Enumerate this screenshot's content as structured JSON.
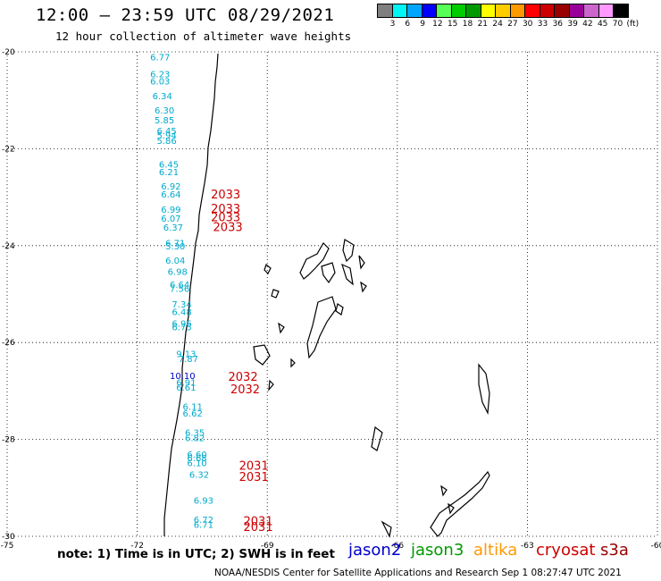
{
  "title": "12:00 – 23:59 UTC 08/29/2021",
  "subtitle": "12 hour collection of altimeter wave heights",
  "colorbar": {
    "colors": [
      "#7f7f7f",
      "#00f5f5",
      "#00a5ff",
      "#0000ff",
      "#55ff55",
      "#00cc00",
      "#009900",
      "#ffff00",
      "#ffcc00",
      "#ff9900",
      "#ff0000",
      "#cc0000",
      "#990000",
      "#990099",
      "#cc66cc",
      "#ff99ff",
      "#000000"
    ],
    "labels": [
      "3",
      "6",
      "9",
      "12",
      "15",
      "18",
      "21",
      "24",
      "27",
      "30",
      "33",
      "36",
      "39",
      "42",
      "45",
      "70",
      "(ft)"
    ]
  },
  "map": {
    "lon_range": [
      -75,
      -60
    ],
    "lat_range": [
      -30,
      -20
    ],
    "x_ticks": [
      "-75",
      "-72",
      "-69",
      "-66",
      "-63",
      "-60"
    ],
    "y_ticks": [
      "-20",
      "-22",
      "-24",
      "-26",
      "-28",
      "-30"
    ],
    "grid": true
  },
  "footnote": "note: 1) Time is in UTC; 2) SWH is in feet",
  "legend": [
    {
      "name": "jason2",
      "color": "#0000cc"
    },
    {
      "name": "jason3",
      "color": "#009900"
    },
    {
      "name": "altika",
      "color": "#ff9900"
    },
    {
      "name": "cryosat",
      "color": "#cc0000"
    },
    {
      "name": "s3a",
      "color": "#990000"
    }
  ],
  "credit": "NOAA/NESDIS Center for Satellite Applications and Research   Sep  1 08:27:47 UTC 2021",
  "swh_labels": [
    {
      "text": "6.77",
      "lon": -71.7,
      "lat": -20.1,
      "color": "#00aacc"
    },
    {
      "text": "6.23",
      "lon": -71.7,
      "lat": -20.45,
      "color": "#00aacc"
    },
    {
      "text": "6.03",
      "lon": -71.7,
      "lat": -20.6,
      "color": "#00aacc"
    },
    {
      "text": "6.34",
      "lon": -71.65,
      "lat": -20.9,
      "color": "#00aacc"
    },
    {
      "text": "6.30",
      "lon": -71.6,
      "lat": -21.2,
      "color": "#00aacc"
    },
    {
      "text": "5.85",
      "lon": -71.6,
      "lat": -21.4,
      "color": "#00aacc"
    },
    {
      "text": "6.45",
      "lon": -71.55,
      "lat": -21.62,
      "color": "#00aacc"
    },
    {
      "text": "5.94",
      "lon": -71.55,
      "lat": -21.72,
      "color": "#00aacc"
    },
    {
      "text": "5.86",
      "lon": -71.55,
      "lat": -21.83,
      "color": "#00aacc"
    },
    {
      "text": "6.45",
      "lon": -71.5,
      "lat": -22.32,
      "color": "#00aacc"
    },
    {
      "text": "6.21",
      "lon": -71.5,
      "lat": -22.47,
      "color": "#00aacc"
    },
    {
      "text": "6.92",
      "lon": -71.45,
      "lat": -22.77,
      "color": "#00aacc"
    },
    {
      "text": "6.64",
      "lon": -71.45,
      "lat": -22.93,
      "color": "#00aacc"
    },
    {
      "text": "6.99",
      "lon": -71.45,
      "lat": -23.25,
      "color": "#00aacc"
    },
    {
      "text": "6.07",
      "lon": -71.45,
      "lat": -23.43,
      "color": "#00aacc"
    },
    {
      "text": "6.37",
      "lon": -71.4,
      "lat": -23.62,
      "color": "#00aacc"
    },
    {
      "text": "6.71",
      "lon": -71.35,
      "lat": -23.94,
      "color": "#00aacc"
    },
    {
      "text": "5.30",
      "lon": -71.35,
      "lat": -24.0,
      "color": "#00aacc"
    },
    {
      "text": "6.04",
      "lon": -71.35,
      "lat": -24.3,
      "color": "#00aacc"
    },
    {
      "text": "6.98",
      "lon": -71.3,
      "lat": -24.53,
      "color": "#00aacc"
    },
    {
      "text": "6.64",
      "lon": -71.25,
      "lat": -24.8,
      "color": "#00aacc"
    },
    {
      "text": "7.56",
      "lon": -71.25,
      "lat": -24.88,
      "color": "#00aacc"
    },
    {
      "text": "7.34",
      "lon": -71.2,
      "lat": -25.2,
      "color": "#00aacc"
    },
    {
      "text": "6.48",
      "lon": -71.2,
      "lat": -25.36,
      "color": "#00aacc"
    },
    {
      "text": "6.96",
      "lon": -71.2,
      "lat": -25.6,
      "color": "#00aacc"
    },
    {
      "text": "6.75",
      "lon": -71.2,
      "lat": -25.67,
      "color": "#00aacc"
    },
    {
      "text": "9.13",
      "lon": -71.1,
      "lat": -26.23,
      "color": "#00aacc"
    },
    {
      "text": "7.87",
      "lon": -71.05,
      "lat": -26.33,
      "color": "#00aacc"
    },
    {
      "text": "10.10",
      "lon": -71.25,
      "lat": -26.68,
      "color": "#0000cc"
    },
    {
      "text": "6.91",
      "lon": -71.1,
      "lat": -26.82,
      "color": "#00aacc"
    },
    {
      "text": "6.61",
      "lon": -71.1,
      "lat": -26.92,
      "color": "#00aacc"
    },
    {
      "text": "6.11",
      "lon": -70.95,
      "lat": -27.32,
      "color": "#00aacc"
    },
    {
      "text": "6.62",
      "lon": -70.95,
      "lat": -27.45,
      "color": "#00aacc"
    },
    {
      "text": "6.35",
      "lon": -70.9,
      "lat": -27.85,
      "color": "#00aacc"
    },
    {
      "text": "6.82",
      "lon": -70.9,
      "lat": -27.96,
      "color": "#00aacc"
    },
    {
      "text": "6.60",
      "lon": -70.85,
      "lat": -28.3,
      "color": "#00aacc"
    },
    {
      "text": "6.68",
      "lon": -70.85,
      "lat": -28.38,
      "color": "#00aacc"
    },
    {
      "text": "6.10",
      "lon": -70.85,
      "lat": -28.48,
      "color": "#00aacc"
    },
    {
      "text": "6.32",
      "lon": -70.8,
      "lat": -28.72,
      "color": "#00aacc"
    },
    {
      "text": "6.93",
      "lon": -70.7,
      "lat": -29.25,
      "color": "#00aacc"
    },
    {
      "text": "6.72",
      "lon": -70.7,
      "lat": -29.65,
      "color": "#00aacc"
    },
    {
      "text": "6.71",
      "lon": -70.7,
      "lat": -29.75,
      "color": "#00aacc"
    }
  ],
  "time_labels": [
    {
      "text": "2033",
      "lon": -70.3,
      "lat": -22.95,
      "color": "#cc0000"
    },
    {
      "text": "2033",
      "lon": -70.3,
      "lat": -23.25,
      "color": "#cc0000"
    },
    {
      "text": "2033",
      "lon": -70.3,
      "lat": -23.42,
      "color": "#cc0000"
    },
    {
      "text": "2033",
      "lon": -70.25,
      "lat": -23.63,
      "color": "#cc0000"
    },
    {
      "text": "2032",
      "lon": -69.9,
      "lat": -26.72,
      "color": "#cc0000"
    },
    {
      "text": "2032",
      "lon": -69.85,
      "lat": -26.97,
      "color": "#cc0000"
    },
    {
      "text": "2031",
      "lon": -69.65,
      "lat": -28.55,
      "color": "#cc0000"
    },
    {
      "text": "2031",
      "lon": -69.65,
      "lat": -28.78,
      "color": "#cc0000"
    },
    {
      "text": "2031",
      "lon": -69.55,
      "lat": -29.7,
      "color": "#cc0000"
    },
    {
      "text": "2031",
      "lon": -69.55,
      "lat": -29.82,
      "color": "#cc0000"
    }
  ]
}
